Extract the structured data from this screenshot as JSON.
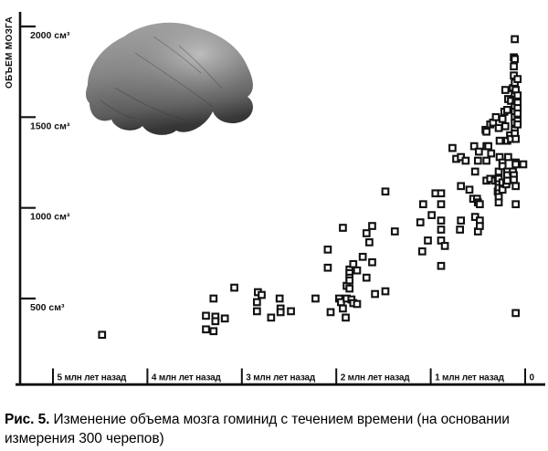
{
  "ink": "#111111",
  "caption": {
    "label": "Рис. 5.",
    "text": "Изменение объема мозга гоминид с течением времени (на основании измерения 300 черепов)"
  },
  "chart_data": {
    "type": "scatter",
    "title": "",
    "ylabel": "ОБЪЕМ МОЗГА",
    "xlabel": "",
    "x_unit": "млн лет назад",
    "y_unit": "см³",
    "x_reversed": true,
    "xlim": [
      5.4,
      -0.2
    ],
    "ylim": [
      0,
      2100
    ],
    "grid": false,
    "legend": "none",
    "marker": "open-square",
    "marker_color": "#111111",
    "x_ticks": [
      {
        "v": 5,
        "label": "5 млн лет назад"
      },
      {
        "v": 4,
        "label": "4 млн лет назад"
      },
      {
        "v": 3,
        "label": "3 млн лет назад"
      },
      {
        "v": 2,
        "label": "2 млн лет назад"
      },
      {
        "v": 1,
        "label": "1 млн лет назад"
      },
      {
        "v": 0,
        "label": "0"
      }
    ],
    "y_ticks": [
      {
        "v": 2000,
        "label": "2000 см³"
      },
      {
        "v": 1500,
        "label": "1500 см³"
      },
      {
        "v": 1000,
        "label": "1000 см³"
      },
      {
        "v": 500,
        "label": "500 см³"
      }
    ],
    "points": [
      [
        4.48,
        300
      ],
      [
        3.38,
        405
      ],
      [
        3.38,
        330
      ],
      [
        3.3,
        500
      ],
      [
        3.3,
        320
      ],
      [
        3.28,
        400
      ],
      [
        3.28,
        375
      ],
      [
        3.18,
        390
      ],
      [
        3.08,
        560
      ],
      [
        2.84,
        480
      ],
      [
        2.84,
        430
      ],
      [
        2.83,
        535
      ],
      [
        2.79,
        520
      ],
      [
        2.69,
        395
      ],
      [
        2.6,
        500
      ],
      [
        2.59,
        445
      ],
      [
        2.59,
        425
      ],
      [
        2.48,
        430
      ],
      [
        2.22,
        500
      ],
      [
        2.09,
        770
      ],
      [
        2.09,
        670
      ],
      [
        2.06,
        425
      ],
      [
        1.97,
        500
      ],
      [
        1.95,
        480
      ],
      [
        1.93,
        890
      ],
      [
        1.93,
        445
      ],
      [
        1.9,
        395
      ],
      [
        1.89,
        570
      ],
      [
        1.89,
        500
      ],
      [
        1.86,
        660
      ],
      [
        1.86,
        640
      ],
      [
        1.86,
        615
      ],
      [
        1.86,
        600
      ],
      [
        1.86,
        555
      ],
      [
        1.84,
        495
      ],
      [
        1.82,
        690
      ],
      [
        1.82,
        475
      ],
      [
        1.78,
        655
      ],
      [
        1.78,
        470
      ],
      [
        1.72,
        730
      ],
      [
        1.68,
        860
      ],
      [
        1.68,
        615
      ],
      [
        1.65,
        810
      ],
      [
        1.62,
        900
      ],
      [
        1.62,
        700
      ],
      [
        1.59,
        525
      ],
      [
        1.48,
        1090
      ],
      [
        1.48,
        540
      ],
      [
        1.38,
        870
      ],
      [
        1.11,
        920
      ],
      [
        1.09,
        760
      ],
      [
        1.08,
        1020
      ],
      [
        1.03,
        820
      ],
      [
        0.99,
        960
      ],
      [
        0.95,
        1080
      ],
      [
        0.89,
        1080
      ],
      [
        0.89,
        1020
      ],
      [
        0.89,
        930
      ],
      [
        0.89,
        880
      ],
      [
        0.89,
        820
      ],
      [
        0.89,
        680
      ],
      [
        0.85,
        790
      ],
      [
        0.77,
        1330
      ],
      [
        0.73,
        1270
      ],
      [
        0.69,
        880
      ],
      [
        0.68,
        1280
      ],
      [
        0.68,
        1120
      ],
      [
        0.68,
        930
      ],
      [
        0.63,
        1260
      ],
      [
        0.59,
        1100
      ],
      [
        0.55,
        1050
      ],
      [
        0.54,
        1340
      ],
      [
        0.53,
        1200
      ],
      [
        0.53,
        950
      ],
      [
        0.51,
        1050
      ],
      [
        0.5,
        1260
      ],
      [
        0.5,
        1030
      ],
      [
        0.5,
        870
      ],
      [
        0.49,
        1310
      ],
      [
        0.48,
        1020
      ],
      [
        0.48,
        930
      ],
      [
        0.48,
        900
      ],
      [
        0.42,
        1430
      ],
      [
        0.41,
        1420
      ],
      [
        0.41,
        1340
      ],
      [
        0.41,
        1260
      ],
      [
        0.41,
        1150
      ],
      [
        0.39,
        1340
      ],
      [
        0.37,
        1460
      ],
      [
        0.37,
        1160
      ],
      [
        0.36,
        1300
      ],
      [
        0.34,
        1470
      ],
      [
        0.32,
        1150
      ],
      [
        0.31,
        1500
      ],
      [
        0.29,
        1160
      ],
      [
        0.29,
        1090
      ],
      [
        0.28,
        1440
      ],
      [
        0.28,
        1200
      ],
      [
        0.28,
        1160
      ],
      [
        0.28,
        1130
      ],
      [
        0.28,
        1110
      ],
      [
        0.28,
        1080
      ],
      [
        0.28,
        1060
      ],
      [
        0.28,
        1030
      ],
      [
        0.27,
        1370
      ],
      [
        0.27,
        1280
      ],
      [
        0.24,
        1490
      ],
      [
        0.24,
        1250
      ],
      [
        0.24,
        1230
      ],
      [
        0.24,
        1140
      ],
      [
        0.24,
        1100
      ],
      [
        0.22,
        1530
      ],
      [
        0.21,
        1650
      ],
      [
        0.21,
        1450
      ],
      [
        0.2,
        1130
      ],
      [
        0.19,
        1540
      ],
      [
        0.19,
        1370
      ],
      [
        0.19,
        1200
      ],
      [
        0.19,
        1180
      ],
      [
        0.19,
        1150
      ],
      [
        0.18,
        1600
      ],
      [
        0.18,
        1280
      ],
      [
        0.16,
        1400
      ],
      [
        0.15,
        1590
      ],
      [
        0.15,
        1380
      ],
      [
        0.13,
        1660
      ],
      [
        0.13,
        1200
      ],
      [
        0.12,
        1830
      ],
      [
        0.12,
        1780
      ],
      [
        0.12,
        1730
      ],
      [
        0.12,
        1180
      ],
      [
        0.12,
        1155
      ],
      [
        0.11,
        1930
      ],
      [
        0.11,
        1820
      ],
      [
        0.11,
        1690
      ],
      [
        0.11,
        1630
      ],
      [
        0.11,
        1560
      ],
      [
        0.11,
        1530
      ],
      [
        0.11,
        1500
      ],
      [
        0.11,
        1470
      ],
      [
        0.11,
        1430
      ],
      [
        0.11,
        1410
      ],
      [
        0.1,
        1650
      ],
      [
        0.1,
        1590
      ],
      [
        0.1,
        1380
      ],
      [
        0.1,
        1250
      ],
      [
        0.1,
        1240
      ],
      [
        0.1,
        1120
      ],
      [
        0.1,
        1020
      ],
      [
        0.1,
        420
      ],
      [
        0.08,
        1710
      ],
      [
        0.08,
        1620
      ],
      [
        0.08,
        1580
      ],
      [
        0.08,
        1550
      ],
      [
        0.08,
        1520
      ],
      [
        0.08,
        1480
      ],
      [
        0.08,
        1460
      ],
      [
        0.02,
        1240
      ]
    ]
  }
}
